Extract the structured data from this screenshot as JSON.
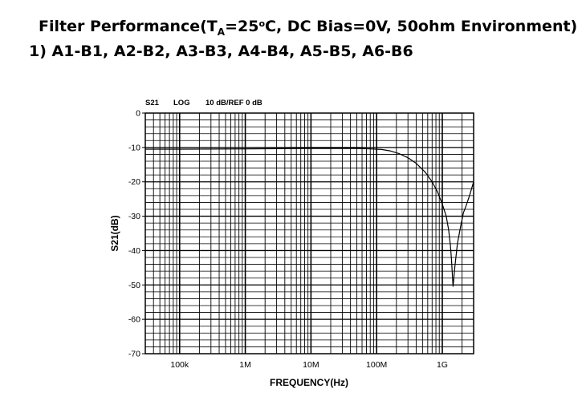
{
  "title": {
    "prefix": "Filter Performance(T",
    "subscript": "A",
    "mid": "=25",
    "superscript": "o",
    "suffix": "C, DC Bias=0V, 50ohm Environment)"
  },
  "subtitle": "1) A1-B1, A2-B2, A3-B3, A4-B4, A5-B5, A6-B6",
  "chart_data": {
    "type": "line",
    "header": {
      "param": "S21",
      "mode": "LOG",
      "scale": "10 dB/REF 0 dB"
    },
    "xlabel": "FREQUENCY(Hz)",
    "ylabel": "S21(dB)",
    "xscale": "log",
    "xlim": [
      30000,
      3000000000
    ],
    "ylim": [
      -70,
      0
    ],
    "grid": true,
    "xticks": [
      {
        "value": 100000,
        "label": "100k"
      },
      {
        "value": 1000000,
        "label": "1M"
      },
      {
        "value": 10000000,
        "label": "10M"
      },
      {
        "value": 100000000,
        "label": "100M"
      },
      {
        "value": 1000000000,
        "label": "1G"
      }
    ],
    "yticks": [
      {
        "value": 0,
        "label": "0"
      },
      {
        "value": -10,
        "label": "-10"
      },
      {
        "value": -20,
        "label": "-20"
      },
      {
        "value": -30,
        "label": "-30"
      },
      {
        "value": -40,
        "label": "-40"
      },
      {
        "value": -50,
        "label": "-50"
      },
      {
        "value": -60,
        "label": "-60"
      },
      {
        "value": -70,
        "label": "-70"
      }
    ],
    "series": [
      {
        "color": "#000000",
        "x": [
          30000,
          100000,
          1000000,
          10000000,
          50000000,
          80000000,
          120000000,
          160000000,
          220000000,
          300000000,
          400000000,
          550000000,
          700000000,
          850000000,
          1000000000,
          1150000000,
          1250000000,
          1330000000,
          1380000000,
          1420000000,
          1460000000,
          1550000000,
          1700000000,
          1900000000,
          2100000000,
          2300000000,
          2600000000,
          3000000000
        ],
        "y": [
          -10.5,
          -10.5,
          -10.4,
          -10.3,
          -10.3,
          -10.4,
          -10.6,
          -11,
          -11.8,
          -13,
          -14.6,
          -17.2,
          -20,
          -23,
          -26.5,
          -30,
          -34,
          -38.5,
          -42.5,
          -46.5,
          -50.5,
          -45,
          -38,
          -33,
          -29,
          -27,
          -24,
          -20
        ]
      }
    ]
  }
}
